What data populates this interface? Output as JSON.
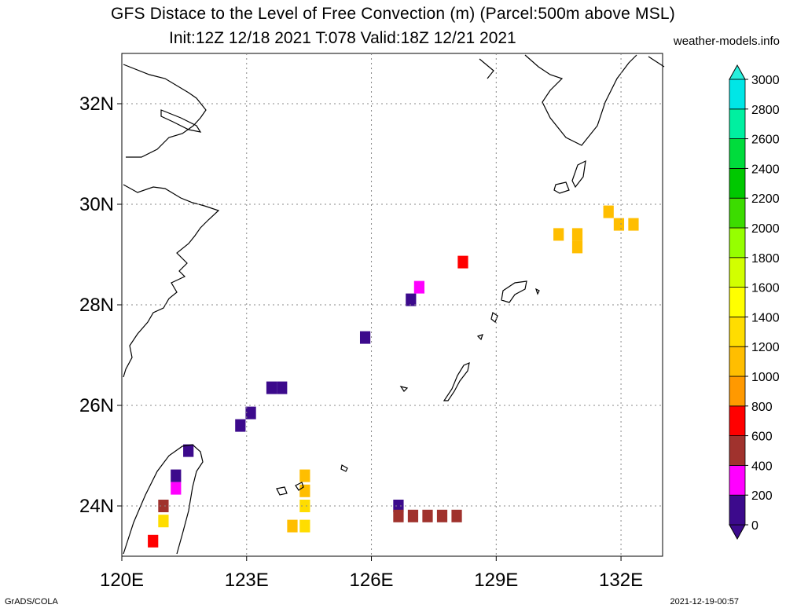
{
  "header": {
    "title_line1": "GFS Distace to the Level of Free Convection (m) (Parcel:500m above MSL)",
    "title_line2": "Init:12Z 12/18 2021 T:078 Valid:18Z 12/21 2021",
    "site": "weather-models.info"
  },
  "footer": {
    "left": "GrADS/COLA",
    "right": "2021-12-19-00:57"
  },
  "map": {
    "lon_range": [
      120,
      133
    ],
    "lat_range": [
      23,
      33
    ],
    "lon_ticks": [
      120,
      123,
      126,
      129,
      132
    ],
    "lon_tick_labels": [
      "120E",
      "123E",
      "126E",
      "129E",
      "132E"
    ],
    "lat_ticks": [
      24,
      26,
      28,
      30,
      32
    ],
    "lat_tick_labels": [
      "24N",
      "26N",
      "28N",
      "30N",
      "32N"
    ],
    "grid": true
  },
  "colorbar": {
    "levels": [
      "0",
      "200",
      "400",
      "600",
      "800",
      "1000",
      "1200",
      "1400",
      "1600",
      "1800",
      "2000",
      "2200",
      "2400",
      "2600",
      "2800",
      "3000"
    ],
    "colors": [
      "#3c0a8c",
      "#ff00ff",
      "#a0322d",
      "#ff0000",
      "#ff9900",
      "#ffbe00",
      "#ffdd00",
      "#ffff00",
      "#d2ff00",
      "#96ff00",
      "#3cdc00",
      "#00c800",
      "#00dc3c",
      "#00f0a0",
      "#00e6e6",
      "#00ffd7"
    ],
    "under_color": "#3c0a8c",
    "over_color": "#28f0dc"
  },
  "cells": [
    {
      "lon": 121.6,
      "lat": 25.1,
      "value": 100
    },
    {
      "lon": 121.3,
      "lat": 24.6,
      "value": 150
    },
    {
      "lon": 121.3,
      "lat": 24.35,
      "value": 300
    },
    {
      "lon": 121.0,
      "lat": 24.0,
      "value": 500
    },
    {
      "lon": 121.0,
      "lat": 23.7,
      "value": 1300
    },
    {
      "lon": 120.75,
      "lat": 23.3,
      "value": 700
    },
    {
      "lon": 122.85,
      "lat": 25.6,
      "value": 50
    },
    {
      "lon": 123.1,
      "lat": 25.85,
      "value": 50
    },
    {
      "lon": 123.6,
      "lat": 26.35,
      "value": 50
    },
    {
      "lon": 123.85,
      "lat": 26.35,
      "value": 50
    },
    {
      "lon": 125.85,
      "lat": 27.35,
      "value": 50
    },
    {
      "lon": 126.95,
      "lat": 28.1,
      "value": 50
    },
    {
      "lon": 127.15,
      "lat": 28.35,
      "value": 250
    },
    {
      "lon": 128.2,
      "lat": 28.85,
      "value": 700
    },
    {
      "lon": 124.4,
      "lat": 24.6,
      "value": 1100
    },
    {
      "lon": 124.4,
      "lat": 24.3,
      "value": 1100
    },
    {
      "lon": 124.4,
      "lat": 24.0,
      "value": 1200
    },
    {
      "lon": 124.1,
      "lat": 23.6,
      "value": 1100
    },
    {
      "lon": 124.4,
      "lat": 23.6,
      "value": 1300
    },
    {
      "lon": 126.65,
      "lat": 24.0,
      "value": 50
    },
    {
      "lon": 126.65,
      "lat": 23.8,
      "value": 450
    },
    {
      "lon": 127.0,
      "lat": 23.8,
      "value": 450
    },
    {
      "lon": 127.35,
      "lat": 23.8,
      "value": 450
    },
    {
      "lon": 127.7,
      "lat": 23.8,
      "value": 450
    },
    {
      "lon": 128.05,
      "lat": 23.8,
      "value": 450
    },
    {
      "lon": 130.5,
      "lat": 29.4,
      "value": 1000
    },
    {
      "lon": 130.95,
      "lat": 29.4,
      "value": 1000
    },
    {
      "lon": 130.95,
      "lat": 29.15,
      "value": 1000
    },
    {
      "lon": 131.7,
      "lat": 29.85,
      "value": 1100
    },
    {
      "lon": 131.95,
      "lat": 29.6,
      "value": 1100
    },
    {
      "lon": 132.3,
      "lat": 29.6,
      "value": 1100
    }
  ]
}
